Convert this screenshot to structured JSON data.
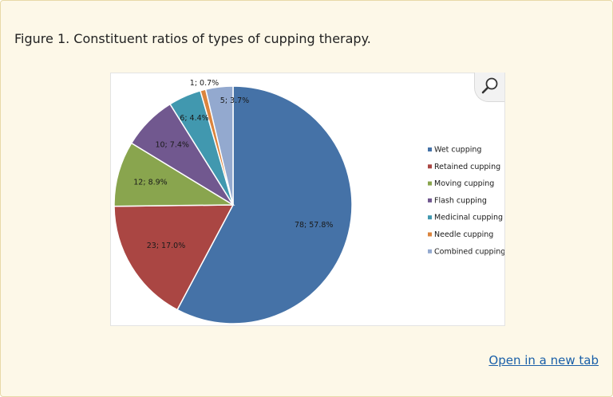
{
  "caption": "Figure 1. Constituent ratios of types of cupping therapy.",
  "link_text": "Open in a new tab",
  "zoom_icon": "magnifier-icon",
  "chart_data": {
    "type": "pie",
    "title": "",
    "legend_position": "right",
    "total": 135,
    "slices": [
      {
        "name": "Wet cupping",
        "value": 78,
        "percent": 57.8,
        "label": "78; 57.8%",
        "color": "#4572a7"
      },
      {
        "name": "Retained cupping",
        "value": 23,
        "percent": 17.0,
        "label": "23; 17.0%",
        "color": "#aa4643"
      },
      {
        "name": "Moving cupping",
        "value": 12,
        "percent": 8.9,
        "label": "12; 8.9%",
        "color": "#89a54e"
      },
      {
        "name": "Flash cupping",
        "value": 10,
        "percent": 7.4,
        "label": "10; 7.4%",
        "color": "#71588f"
      },
      {
        "name": "Medicinal cupping",
        "value": 6,
        "percent": 4.4,
        "label": "6; 4.4%",
        "color": "#4198af"
      },
      {
        "name": "Needle cupping",
        "value": 1,
        "percent": 0.7,
        "label": "1; 0.7%",
        "color": "#db843d"
      },
      {
        "name": "Combined cupping",
        "value": 5,
        "percent": 3.7,
        "label": "5; 3.7%",
        "color": "#93a9cf"
      }
    ]
  }
}
